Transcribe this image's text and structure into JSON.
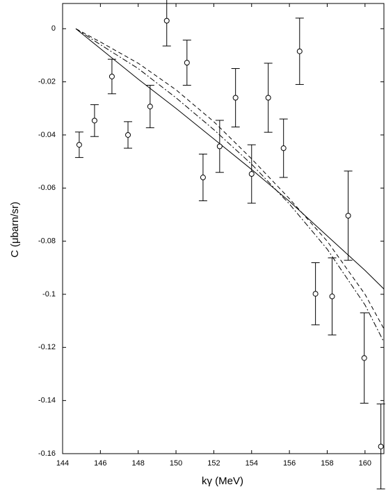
{
  "chart_data": {
    "type": "scatter",
    "xlabel": "kγ   (MeV)",
    "ylabel": "C  (μbarn/sr)",
    "x": [
      144.88,
      145.69,
      146.61,
      147.46,
      148.63,
      149.51,
      150.58,
      151.43,
      152.31,
      153.15,
      154.0,
      154.88,
      155.69,
      156.54,
      157.38,
      158.26,
      159.11,
      159.96,
      160.84
    ],
    "values": [
      -0.0437,
      -0.0346,
      -0.018,
      -0.04,
      -0.0293,
      0.003,
      -0.0128,
      -0.056,
      -0.0443,
      -0.026,
      -0.0547,
      -0.026,
      -0.045,
      -0.0085,
      -0.0998,
      -0.1008,
      -0.0704,
      -0.124,
      -0.1573
    ],
    "errors": [
      0.0048,
      0.006,
      0.0065,
      0.005,
      0.008,
      0.0095,
      0.0085,
      0.0088,
      0.0098,
      0.011,
      0.011,
      0.013,
      0.011,
      0.0125,
      0.0117,
      0.0145,
      0.0168,
      0.017,
      0.016
    ],
    "color": "#000000",
    "lines": [
      {
        "style": "solid",
        "color": "#000000",
        "x": [
          144.7,
          146,
          148,
          150,
          152,
          154,
          156,
          158,
          160,
          161
        ],
        "values": [
          0,
          -0.0075,
          -0.019,
          -0.03,
          -0.0415,
          -0.053,
          -0.065,
          -0.078,
          -0.091,
          -0.098
        ]
      },
      {
        "style": "dashed",
        "color": "#000000",
        "x": [
          144.7,
          146,
          148,
          150,
          152,
          154,
          156,
          158,
          160,
          161
        ],
        "values": [
          0,
          -0.005,
          -0.013,
          -0.023,
          -0.035,
          -0.049,
          -0.064,
          -0.08,
          -0.1,
          -0.113
        ]
      },
      {
        "style": "dashdot",
        "color": "#000000",
        "x": [
          144.7,
          146,
          148,
          150,
          152,
          154,
          156,
          158,
          160,
          161
        ],
        "values": [
          0,
          -0.006,
          -0.015,
          -0.026,
          -0.038,
          -0.051,
          -0.066,
          -0.083,
          -0.104,
          -0.118
        ]
      }
    ],
    "xlim": [
      144,
      161
    ],
    "ylim": [
      -0.16,
      0.0095
    ],
    "xticks": [
      144,
      146,
      148,
      150,
      152,
      154,
      156,
      158,
      160
    ],
    "yticks": [
      0,
      -0.02,
      -0.04,
      -0.06,
      -0.08,
      -0.1,
      -0.12,
      -0.14,
      -0.16
    ],
    "grid": false
  }
}
